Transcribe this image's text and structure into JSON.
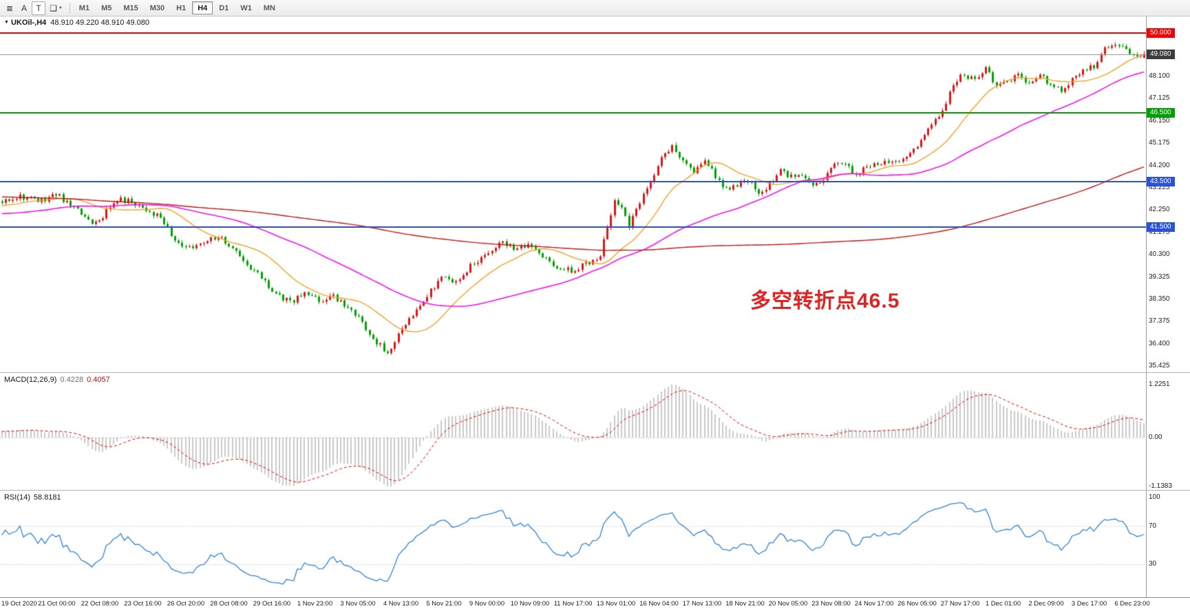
{
  "colors": {
    "up_candle": "#e01515",
    "down_candle": "#00a000",
    "ma_fast": "#f0a028",
    "ma_mid": "#f012f0",
    "ma_slow": "#c41414",
    "macd_hist": "#c9c9c9",
    "macd_signal": "#dd0000",
    "rsi_line": "#2f7fd6",
    "annotation": "#e02222",
    "current_price_box": "#3c3c3c"
  },
  "toolbar": {
    "tools": [
      {
        "name": "chart-properties-icon",
        "glyph": "≣",
        "boxed": false,
        "caret": false
      },
      {
        "name": "text-label-tool-icon",
        "glyph": "A",
        "boxed": false,
        "caret": false
      },
      {
        "name": "template-tool-icon",
        "glyph": "T",
        "boxed": true,
        "caret": false
      },
      {
        "name": "objects-list-icon",
        "glyph": "❏",
        "boxed": false,
        "caret": true
      }
    ],
    "timeframes": [
      {
        "label": "M1",
        "active": false
      },
      {
        "label": "M5",
        "active": false
      },
      {
        "label": "M15",
        "active": false
      },
      {
        "label": "M30",
        "active": false
      },
      {
        "label": "H1",
        "active": false
      },
      {
        "label": "H4",
        "active": true
      },
      {
        "label": "D1",
        "active": false
      },
      {
        "label": "W1",
        "active": false
      },
      {
        "label": "MN",
        "active": false
      }
    ]
  },
  "main_chart": {
    "collapse_icon": "▼",
    "symbol": "UKOil-,H4",
    "ohlc": "48.910 49.220 48.910 49.080"
  },
  "annotation": {
    "text": "多空转折点46.5"
  },
  "price_scale_ticks": [
    "48.100",
    "47.125",
    "46.150",
    "45.175",
    "44.200",
    "43.225",
    "42.250",
    "41.275",
    "40.300",
    "39.325",
    "38.350",
    "37.375",
    "36.400",
    "35.425"
  ],
  "macd_panel": {
    "title": "MACD(12,26,9)",
    "value_main": "0.4228",
    "value_signal": "0.4057",
    "ticks": [
      {
        "label": "1.2251",
        "value": 1.2251
      },
      {
        "label": "0.00",
        "value": 0
      },
      {
        "label": "-1.1383",
        "value": -1.1383
      }
    ]
  },
  "rsi_panel": {
    "title": "RSI(14)",
    "value": "58.8181",
    "ticks": [
      {
        "label": "100",
        "value": 100
      },
      {
        "label": "70",
        "value": 70
      },
      {
        "label": "30",
        "value": 30
      }
    ]
  },
  "time_axis": [
    "19 Oct 2020",
    "21 Oct 00:00",
    "22 Oct 08:00",
    "23 Oct 16:00",
    "26 Oct 20:00",
    "28 Oct 08:00",
    "29 Oct 16:00",
    "1 Nov 23:00",
    "3 Nov 05:00",
    "4 Nov 13:00",
    "5 Nov 21:00",
    "9 Nov 00:00",
    "10 Nov 09:00",
    "11 Nov 17:00",
    "13 Nov 01:00",
    "16 Nov 04:00",
    "17 Nov 13:00",
    "18 Nov 21:00",
    "20 Nov 05:00",
    "23 Nov 08:00",
    "24 Nov 17:00",
    "26 Nov 05:00",
    "27 Nov 17:00",
    "1 Dec 01:00",
    "2 Dec 09:00",
    "3 Dec 17:00",
    "6 Dec 23:00"
  ],
  "chart_data": {
    "type": "candlestick",
    "symbol": "UKOil-",
    "timeframe": "H4",
    "current_bar": {
      "open": 48.91,
      "high": 49.22,
      "low": 48.91,
      "close": 49.08
    },
    "y_axis_range": [
      35.16,
      50.72
    ],
    "levels": [
      {
        "label": "50.000",
        "price": 50.0,
        "color": "#f50000",
        "thickness": 2
      },
      {
        "label": "46.500",
        "price": 46.5,
        "color": "#00a000",
        "thickness": 2
      },
      {
        "label": "43.500",
        "price": 43.5,
        "color": "#2b50d9",
        "thickness": 2
      },
      {
        "label": "41.500",
        "price": 41.5,
        "color": "#2b50d9",
        "thickness": 2
      }
    ],
    "current_price": {
      "label": "49.080",
      "price": 49.08
    },
    "bar_count": 318,
    "history_bars": 200,
    "seed": 11,
    "noise": 0.13,
    "wick": 0.1,
    "ma_periods": [
      18,
      55,
      200
    ],
    "macd_params": [
      12,
      26,
      9
    ],
    "macd_scale_max": 1.2251,
    "macd_scale_min": -1.1383,
    "rsi_period": 14,
    "indicators": [
      "MACD(12,26,9) 0.4228 0.4057",
      "RSI(14) 58.8181"
    ],
    "price_keyframes": [
      [
        -200,
        43.5
      ],
      [
        -160,
        44.2
      ],
      [
        -130,
        42.8
      ],
      [
        -100,
        42.2
      ],
      [
        -70,
        43.0
      ],
      [
        -40,
        41.6
      ],
      [
        -20,
        42.2
      ],
      [
        0,
        42.6
      ],
      [
        5,
        42.9
      ],
      [
        10,
        42.6
      ],
      [
        15,
        42.95
      ],
      [
        20,
        42.3
      ],
      [
        25,
        41.75
      ],
      [
        28,
        42.0
      ],
      [
        32,
        42.7
      ],
      [
        36,
        42.65
      ],
      [
        40,
        42.3
      ],
      [
        44,
        41.9
      ],
      [
        48,
        40.9
      ],
      [
        52,
        40.55
      ],
      [
        56,
        40.9
      ],
      [
        60,
        41.15
      ],
      [
        64,
        40.6
      ],
      [
        68,
        39.8
      ],
      [
        72,
        39.3
      ],
      [
        76,
        38.6
      ],
      [
        80,
        38.2
      ],
      [
        84,
        38.6
      ],
      [
        88,
        38.25
      ],
      [
        92,
        38.5
      ],
      [
        96,
        38.0
      ],
      [
        100,
        37.3
      ],
      [
        104,
        36.5
      ],
      [
        107,
        35.95
      ],
      [
        110,
        36.8
      ],
      [
        114,
        37.6
      ],
      [
        118,
        38.5
      ],
      [
        122,
        39.35
      ],
      [
        126,
        39.1
      ],
      [
        130,
        39.8
      ],
      [
        134,
        40.3
      ],
      [
        138,
        40.85
      ],
      [
        142,
        40.55
      ],
      [
        146,
        40.8
      ],
      [
        150,
        40.15
      ],
      [
        154,
        39.8
      ],
      [
        158,
        39.6
      ],
      [
        162,
        39.9
      ],
      [
        166,
        40.3
      ],
      [
        168,
        41.5
      ],
      [
        170,
        42.8
      ],
      [
        172,
        42.4
      ],
      [
        174,
        41.6
      ],
      [
        176,
        42.2
      ],
      [
        178,
        43.0
      ],
      [
        180,
        43.6
      ],
      [
        183,
        44.5
      ],
      [
        186,
        45.0
      ],
      [
        189,
        44.4
      ],
      [
        192,
        43.9
      ],
      [
        195,
        44.45
      ],
      [
        198,
        43.7
      ],
      [
        201,
        43.2
      ],
      [
        204,
        43.35
      ],
      [
        207,
        43.55
      ],
      [
        210,
        43.0
      ],
      [
        213,
        43.4
      ],
      [
        216,
        43.95
      ],
      [
        219,
        43.7
      ],
      [
        222,
        43.8
      ],
      [
        225,
        43.45
      ],
      [
        228,
        43.6
      ],
      [
        231,
        44.35
      ],
      [
        234,
        44.2
      ],
      [
        237,
        43.8
      ],
      [
        240,
        44.2
      ],
      [
        243,
        44.3
      ],
      [
        246,
        44.4
      ],
      [
        249,
        44.5
      ],
      [
        252,
        44.8
      ],
      [
        255,
        45.2
      ],
      [
        258,
        46.05
      ],
      [
        261,
        46.5
      ],
      [
        264,
        47.8
      ],
      [
        267,
        48.2
      ],
      [
        270,
        47.9
      ],
      [
        273,
        48.6
      ],
      [
        276,
        47.65
      ],
      [
        279,
        47.9
      ],
      [
        282,
        48.1
      ],
      [
        285,
        47.85
      ],
      [
        288,
        48.1
      ],
      [
        291,
        47.8
      ],
      [
        294,
        47.4
      ],
      [
        297,
        48.0
      ],
      [
        300,
        48.3
      ],
      [
        303,
        48.55
      ],
      [
        306,
        49.3
      ],
      [
        309,
        49.6
      ],
      [
        312,
        49.2
      ],
      [
        315,
        49.0
      ],
      [
        317,
        49.08
      ]
    ]
  }
}
